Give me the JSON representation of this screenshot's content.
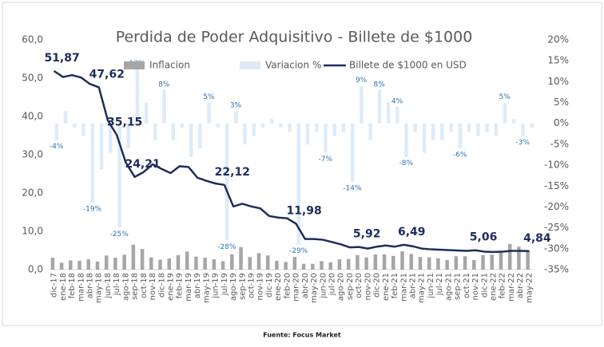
{
  "chart_data": {
    "type": "combo",
    "title": "Perdida de Poder Adquisitivo - Billete de $1000",
    "source": "Fuente: Focus Market",
    "categories": [
      "dic-17",
      "ene-18",
      "feb-18",
      "mar-18",
      "abr-18",
      "may-18",
      "jun-18",
      "jul-18",
      "ago-18",
      "sep-18",
      "oct-18",
      "nov-18",
      "dic-18",
      "ene-19",
      "feb-19",
      "mar-19",
      "abr-19",
      "may-19",
      "jun-19",
      "jul-19",
      "ago-19",
      "sep-19",
      "oct-19",
      "nov-19",
      "dic-19",
      "ene-20",
      "feb-20",
      "mar-20",
      "abr-20",
      "may-20",
      "jun-20",
      "jul-20",
      "ago-20",
      "sep-20",
      "oct-20",
      "nov-20",
      "dic-20",
      "ene-21",
      "feb-21",
      "mar-21",
      "abr-21",
      "may-21",
      "jun-21",
      "jul-21",
      "ago-21",
      "sep-21",
      "oct-21",
      "nov-21",
      "dic-21",
      "ene-22",
      "feb-22",
      "mar-22",
      "abr-22",
      "may-22"
    ],
    "ylim": [
      0,
      60
    ],
    "yticks": [
      {
        "value": 0,
        "label": "0,0"
      },
      {
        "value": 10,
        "label": "10,0"
      },
      {
        "value": 20,
        "label": "20,0"
      },
      {
        "value": 30,
        "label": "30,0"
      },
      {
        "value": 40,
        "label": "40,0"
      },
      {
        "value": 50,
        "label": "50,0"
      },
      {
        "value": 60,
        "label": "60,0"
      }
    ],
    "y2lim": [
      -35,
      20
    ],
    "y2ticks": [
      {
        "value": 20,
        "label": "20%"
      },
      {
        "value": 15,
        "label": "15%"
      },
      {
        "value": 10,
        "label": "10%"
      },
      {
        "value": 5,
        "label": "5%"
      },
      {
        "value": 0,
        "label": "0%"
      },
      {
        "value": -5,
        "label": "-5%"
      },
      {
        "value": -10,
        "label": "-10%"
      },
      {
        "value": -15,
        "label": "-15%"
      },
      {
        "value": -20,
        "label": "-20%"
      },
      {
        "value": -25,
        "label": "-25%"
      },
      {
        "value": -30,
        "label": "-30%"
      },
      {
        "value": -35,
        "label": "-35%"
      }
    ],
    "series": [
      {
        "name": "Inflacion",
        "type": "bar",
        "color": "#a6a6a6",
        "values": [
          3.1,
          1.8,
          2.4,
          2.3,
          2.7,
          2.1,
          3.7,
          3.1,
          3.9,
          6.5,
          5.4,
          3.2,
          2.6,
          2.9,
          3.8,
          4.7,
          3.4,
          3.1,
          2.7,
          2.2,
          4.0,
          5.9,
          3.3,
          4.3,
          3.7,
          2.3,
          2.0,
          3.3,
          1.5,
          1.5,
          2.2,
          1.9,
          2.7,
          2.8,
          3.8,
          3.2,
          4.0,
          4.0,
          3.6,
          4.8,
          4.1,
          3.3,
          3.2,
          3.0,
          2.5,
          3.5,
          3.5,
          2.5,
          3.8,
          3.9,
          4.7,
          6.7,
          6.0,
          5.1
        ]
      },
      {
        "name": "Variacion %",
        "type": "bar",
        "axis": "y2",
        "color": "#deebf7",
        "values": [
          -4,
          3,
          -1,
          -3,
          -19,
          -11,
          -7,
          -25,
          -6,
          13,
          5,
          -4,
          8,
          -4,
          -1,
          -8,
          -6,
          5,
          -1,
          -28,
          3,
          -5,
          -3,
          -1,
          1,
          -1,
          -2,
          -29,
          -5,
          -2,
          -7,
          -3,
          -2,
          -14,
          9,
          -4,
          8,
          5,
          4,
          -8,
          -2,
          -7,
          -4,
          -4,
          -2,
          -6,
          -2,
          -3,
          -2,
          -3,
          5,
          1,
          -3,
          -1
        ],
        "value_labels": [
          "-4%",
          null,
          null,
          null,
          "-19%",
          null,
          null,
          "-25%",
          null,
          "13%",
          null,
          null,
          "8%",
          null,
          null,
          null,
          null,
          "5%",
          null,
          "-28%",
          "3%",
          null,
          null,
          null,
          null,
          null,
          null,
          "-29%",
          null,
          null,
          "-7%",
          null,
          null,
          "-14%",
          "9%",
          null,
          "8%",
          null,
          "4%",
          "-8%",
          null,
          null,
          null,
          null,
          null,
          "-6%",
          null,
          null,
          null,
          null,
          "5%",
          null,
          "-3%",
          null
        ]
      },
      {
        "name": "Billete de $1000 en USD",
        "type": "line",
        "color": "#1f2d5c",
        "values": [
          51.87,
          50.3,
          50.8,
          50.2,
          48.5,
          47.62,
          39,
          35.15,
          28,
          24.21,
          25.5,
          27.5,
          26.3,
          25.2,
          27.0,
          26.8,
          24,
          23.2,
          22.5,
          22.12,
          16.5,
          17.2,
          16.5,
          16.0,
          14.0,
          13.6,
          13.4,
          11.98,
          8.0,
          8.0,
          7.8,
          7.2,
          6.6,
          5.8,
          5.92,
          5.5,
          6.0,
          6.3,
          6.0,
          6.49,
          6.1,
          5.5,
          5.3,
          5.2,
          5.1,
          5.0,
          4.9,
          5.06,
          4.7,
          4.6,
          4.7,
          4.9,
          4.9,
          4.84
        ],
        "value_labels": [
          "51,87",
          null,
          null,
          null,
          null,
          "47,62",
          null,
          "35,15",
          null,
          "24,21",
          null,
          null,
          null,
          null,
          null,
          null,
          null,
          null,
          null,
          "22,12",
          null,
          null,
          null,
          null,
          null,
          null,
          null,
          "11,98",
          null,
          null,
          null,
          null,
          null,
          null,
          "5,92",
          null,
          null,
          null,
          null,
          "6,49",
          null,
          null,
          null,
          null,
          null,
          null,
          null,
          "5,06",
          null,
          null,
          null,
          null,
          null,
          "4,84"
        ]
      }
    ]
  }
}
